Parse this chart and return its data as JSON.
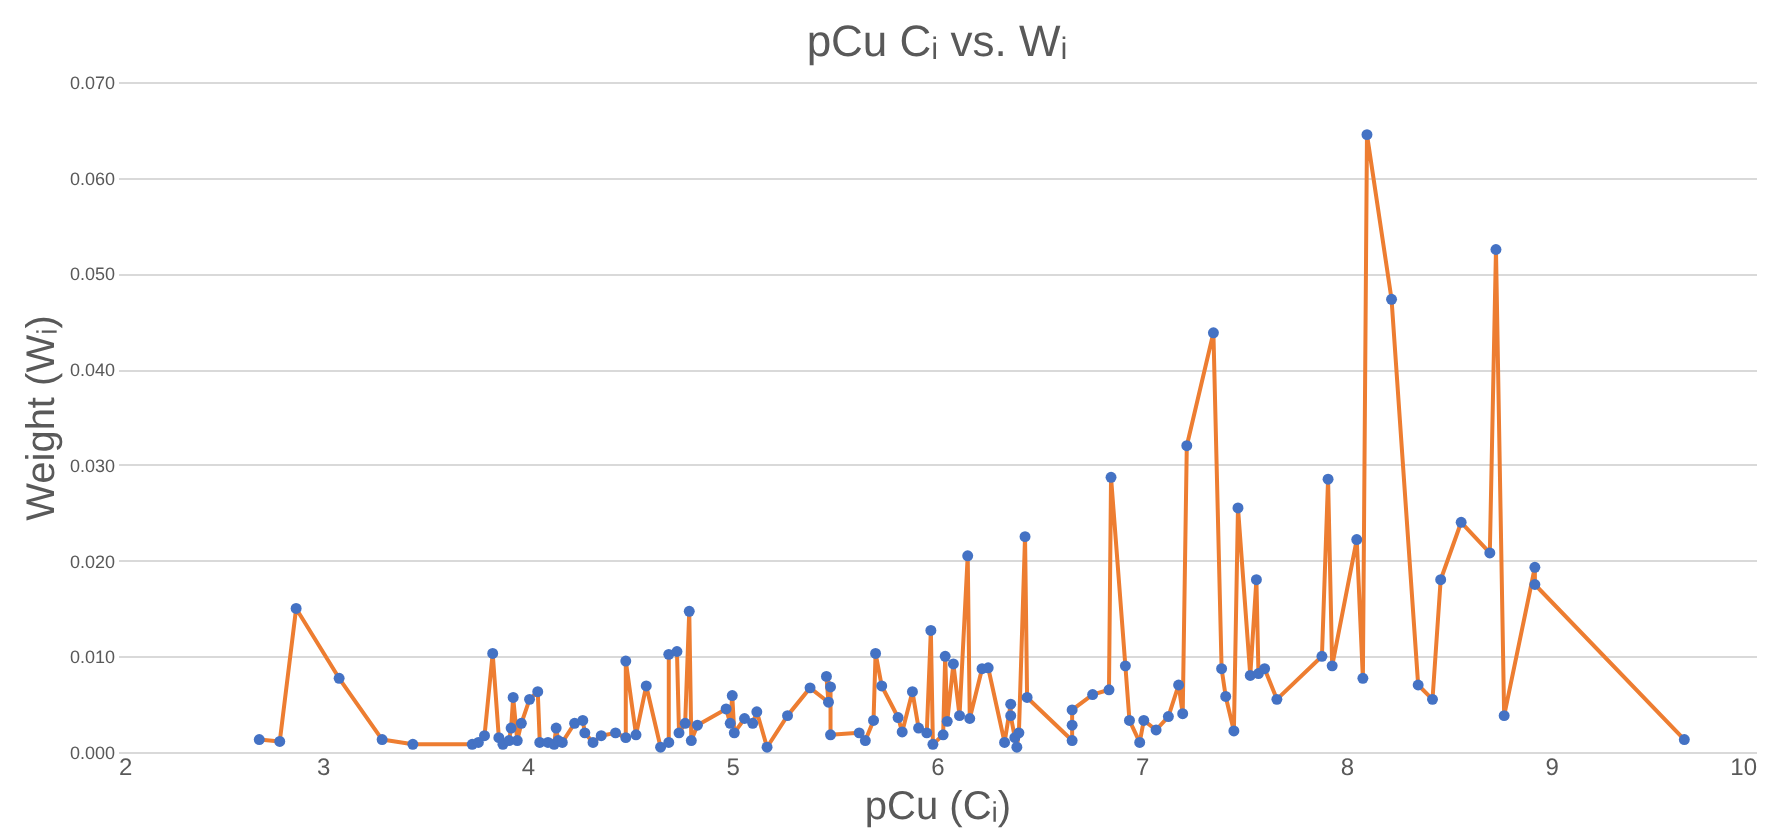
{
  "chart_data": {
    "type": "line",
    "title": "pCu Cᵢ vs. Wᵢ",
    "xlabel": "pCu (Cᵢ)",
    "ylabel": "Weight (Wᵢ)",
    "xlim": [
      2,
      10
    ],
    "xticks": [
      2,
      3,
      4,
      5,
      6,
      7,
      8,
      9,
      10
    ],
    "ylim": [
      0,
      0.07
    ],
    "yticks": [
      {
        "value": 0,
        "label": "0.000"
      },
      {
        "value": 0.01,
        "label": "0.010"
      },
      {
        "value": 0.02,
        "label": "0.020"
      },
      {
        "value": 0.03,
        "label": "0.030"
      },
      {
        "value": 0.04,
        "label": "0.040"
      },
      {
        "value": 0.05,
        "label": "0.050"
      },
      {
        "value": 0.06,
        "label": "0.060"
      },
      {
        "value": 0.07,
        "label": "0.070"
      }
    ],
    "grid": "y",
    "marker": "circle",
    "line_style": "solid",
    "series": [
      {
        "color": "#ed7d31",
        "x": [
          2.69,
          2.79,
          2.87,
          3.08,
          3.29,
          3.44,
          3.73,
          3.76,
          3.79,
          3.83,
          3.86,
          3.88,
          3.91,
          3.92,
          3.93,
          3.95,
          3.97,
          4.01,
          4.05,
          4.06,
          4.1,
          4.13,
          4.14,
          4.15,
          4.17,
          4.23,
          4.27,
          4.28,
          4.32,
          4.36,
          4.43,
          4.48,
          4.48,
          4.53,
          4.58,
          4.65,
          4.69,
          4.69,
          4.73,
          4.74,
          4.77,
          4.79,
          4.8,
          4.83,
          4.97,
          4.99,
          5.0,
          5.01,
          5.06,
          5.1,
          5.12,
          5.17,
          5.27,
          5.38,
          5.47,
          5.46,
          5.48,
          5.48,
          5.62,
          5.65,
          5.69,
          5.7,
          5.73,
          5.81,
          5.83,
          5.88,
          5.91,
          5.95,
          5.97,
          5.98,
          6.03,
          6.04,
          6.05,
          6.08,
          6.11,
          6.15,
          6.16,
          6.22,
          6.25,
          6.33,
          6.36,
          6.36,
          6.38,
          6.39,
          6.4,
          6.43,
          6.44,
          6.66,
          6.66,
          6.66,
          6.76,
          6.84,
          6.85,
          6.92,
          6.94,
          6.99,
          7.01,
          7.07,
          7.13,
          7.18,
          7.2,
          7.22,
          7.35,
          7.39,
          7.41,
          7.45,
          7.47,
          7.53,
          7.56,
          7.57,
          7.6,
          7.66,
          7.88,
          7.91,
          7.93,
          8.05,
          8.08,
          8.1,
          8.22,
          8.35,
          8.42,
          8.46,
          8.56,
          8.7,
          8.73,
          8.77,
          8.92,
          8.92,
          9.65
        ],
        "values": [
          0.0013,
          0.0011,
          0.015,
          0.0077,
          0.0013,
          0.0008,
          0.0008,
          0.001,
          0.0017,
          0.0103,
          0.0015,
          0.0008,
          0.0012,
          0.0025,
          0.0057,
          0.0012,
          0.003,
          0.0055,
          0.0063,
          0.001,
          0.001,
          0.0008,
          0.0025,
          0.0012,
          0.001,
          0.003,
          0.0033,
          0.002,
          0.001,
          0.0017,
          0.002,
          0.0015,
          0.0095,
          0.0018,
          0.0069,
          0.0005,
          0.001,
          0.0102,
          0.0105,
          0.002,
          0.003,
          0.0147,
          0.0012,
          0.0028,
          0.0045,
          0.003,
          0.0059,
          0.002,
          0.0035,
          0.003,
          0.0042,
          0.0005,
          0.0038,
          0.0067,
          0.0052,
          0.0079,
          0.0068,
          0.0018,
          0.002,
          0.0012,
          0.0033,
          0.0103,
          0.0069,
          0.0036,
          0.0021,
          0.0063,
          0.0025,
          0.002,
          0.0127,
          0.0008,
          0.0018,
          0.01,
          0.0032,
          0.0092,
          0.0038,
          0.0205,
          0.0035,
          0.0087,
          0.0088,
          0.001,
          0.005,
          0.0038,
          0.0015,
          0.0005,
          0.002,
          0.0225,
          0.0057,
          0.0012,
          0.0028,
          0.0044,
          0.006,
          0.0065,
          0.0287,
          0.009,
          0.0033,
          0.001,
          0.0033,
          0.0023,
          0.0037,
          0.007,
          0.004,
          0.032,
          0.0438,
          0.0087,
          0.0058,
          0.0022,
          0.0255,
          0.008,
          0.018,
          0.0082,
          0.0087,
          0.0055,
          0.01,
          0.0285,
          0.009,
          0.0222,
          0.0077,
          0.0645,
          0.0473,
          0.007,
          0.0055,
          0.018,
          0.024,
          0.0208,
          0.0525,
          0.0038,
          0.0193,
          0.0175,
          0.0013
        ]
      }
    ]
  }
}
